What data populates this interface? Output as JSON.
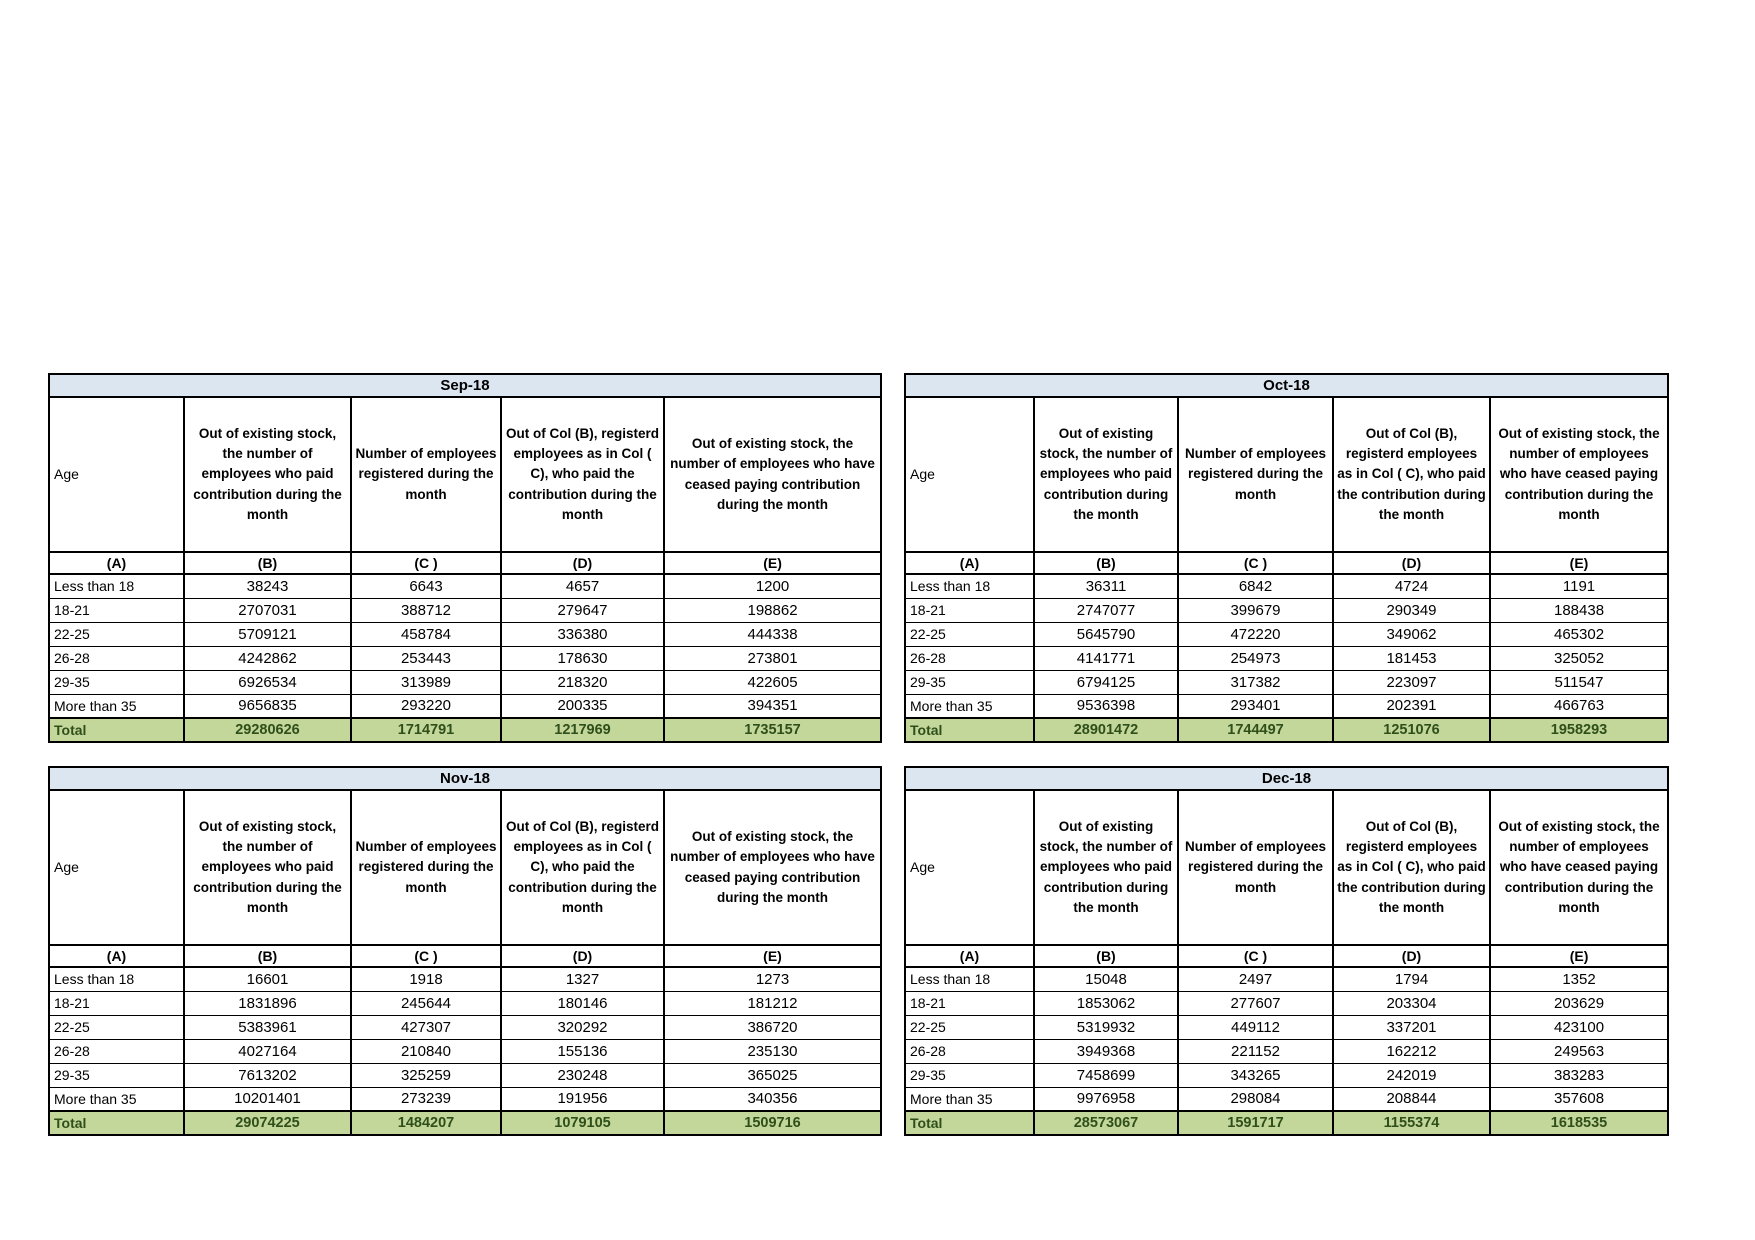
{
  "page": {
    "background": "#ffffff"
  },
  "colors": {
    "title_fill": "#dce6f1",
    "total_fill": "#c4d79b",
    "total_text": "#2f4f1a",
    "border": "#000000"
  },
  "headers": {
    "age": "Age",
    "col_b": "Out of existing stock, the number of employees who paid contribution during the month",
    "col_c": "Number of employees registered during the month",
    "col_d": "Out of Col (B), registerd employees as in Col ( C), who paid the contribution during the month",
    "col_e": "Out of existing stock, the number of employees who have ceased paying contribution during the month"
  },
  "column_letters": [
    "(A)",
    "(B)",
    "(C )",
    "(D)",
    "(E)"
  ],
  "row_labels": [
    "Less than 18",
    "18-21",
    "22-25",
    "26-28",
    "29-35",
    "More than 35"
  ],
  "total_label": "Total",
  "tables": [
    {
      "title": "Sep-18",
      "rows": [
        [
          38243,
          6643,
          4657,
          1200
        ],
        [
          2707031,
          388712,
          279647,
          198862
        ],
        [
          5709121,
          458784,
          336380,
          444338
        ],
        [
          4242862,
          253443,
          178630,
          273801
        ],
        [
          6926534,
          313989,
          218320,
          422605
        ],
        [
          9656835,
          293220,
          200335,
          394351
        ]
      ],
      "totals": [
        29280626,
        1714791,
        1217969,
        1735157
      ]
    },
    {
      "title": "Oct-18",
      "rows": [
        [
          36311,
          6842,
          4724,
          1191
        ],
        [
          2747077,
          399679,
          290349,
          188438
        ],
        [
          5645790,
          472220,
          349062,
          465302
        ],
        [
          4141771,
          254973,
          181453,
          325052
        ],
        [
          6794125,
          317382,
          223097,
          511547
        ],
        [
          9536398,
          293401,
          202391,
          466763
        ]
      ],
      "totals": [
        28901472,
        1744497,
        1251076,
        1958293
      ]
    },
    {
      "title": "Nov-18",
      "rows": [
        [
          16601,
          1918,
          1327,
          1273
        ],
        [
          1831896,
          245644,
          180146,
          181212
        ],
        [
          5383961,
          427307,
          320292,
          386720
        ],
        [
          4027164,
          210840,
          155136,
          235130
        ],
        [
          7613202,
          325259,
          230248,
          365025
        ],
        [
          10201401,
          273239,
          191956,
          340356
        ]
      ],
      "totals": [
        29074225,
        1484207,
        1079105,
        1509716
      ]
    },
    {
      "title": "Dec-18",
      "rows": [
        [
          15048,
          2497,
          1794,
          1352
        ],
        [
          1853062,
          277607,
          203304,
          203629
        ],
        [
          5319932,
          449112,
          337201,
          423100
        ],
        [
          3949368,
          221152,
          162212,
          249563
        ],
        [
          7458699,
          343265,
          242019,
          383283
        ],
        [
          9976958,
          298084,
          208844,
          357608
        ]
      ],
      "totals": [
        28573067,
        1591717,
        1155374,
        1618535
      ]
    }
  ]
}
